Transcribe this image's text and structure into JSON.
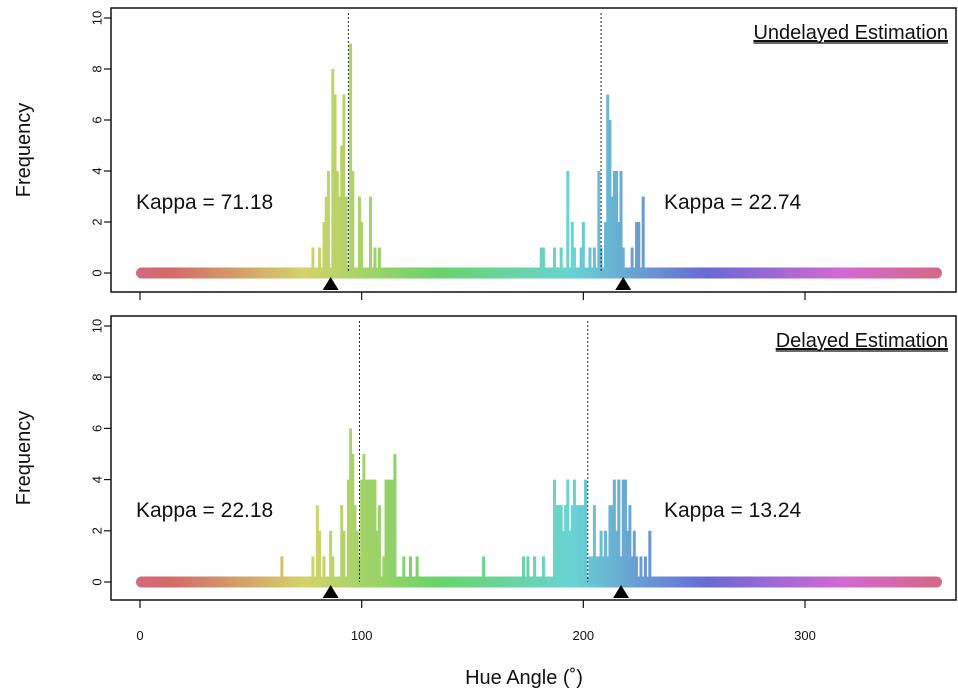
{
  "chart_data": {
    "type": "bar",
    "xlabel": "Hue Angle (˚)",
    "ylabel": "Frequency",
    "xlim": [
      0,
      360
    ],
    "ylim": [
      0,
      10
    ],
    "x_ticks": [
      "0",
      "100",
      "200",
      "300"
    ],
    "y_ticks": [
      "0",
      "2",
      "4",
      "6",
      "8",
      "10"
    ],
    "hue_wheel": true,
    "panels": [
      {
        "title": "Undelayed Estimation",
        "kappa_left": "Kappa = 71.18",
        "kappa_right": "Kappa = 22.74",
        "mean_lines": [
          94,
          208
        ],
        "targets": [
          86,
          218
        ],
        "bars": [
          [
            78,
            1
          ],
          [
            81,
            1
          ],
          [
            83,
            2
          ],
          [
            84,
            3
          ],
          [
            85,
            4
          ],
          [
            87,
            8
          ],
          [
            88,
            7
          ],
          [
            89,
            4
          ],
          [
            90,
            3
          ],
          [
            91,
            5
          ],
          [
            92,
            7
          ],
          [
            93,
            3
          ],
          [
            95,
            9
          ],
          [
            96,
            4
          ],
          [
            99,
            3
          ],
          [
            100,
            2
          ],
          [
            104,
            3
          ],
          [
            106,
            1
          ],
          [
            108,
            1
          ],
          [
            181,
            1
          ],
          [
            182,
            1
          ],
          [
            187,
            1
          ],
          [
            190,
            1
          ],
          [
            193,
            4
          ],
          [
            195,
            2
          ],
          [
            196,
            1
          ],
          [
            199,
            1
          ],
          [
            200,
            2
          ],
          [
            203,
            1
          ],
          [
            205,
            1
          ],
          [
            207,
            4
          ],
          [
            208,
            1
          ],
          [
            210,
            2
          ],
          [
            211,
            7
          ],
          [
            212,
            6
          ],
          [
            213,
            3
          ],
          [
            214,
            4
          ],
          [
            215,
            4
          ],
          [
            216,
            2
          ],
          [
            217,
            4
          ],
          [
            218,
            1
          ],
          [
            222,
            1
          ],
          [
            224,
            2
          ],
          [
            225,
            2
          ],
          [
            227,
            3
          ]
        ]
      },
      {
        "title": "Delayed Estimation",
        "kappa_left": "Kappa = 22.18",
        "kappa_right": "Kappa = 13.24",
        "mean_lines": [
          99,
          202
        ],
        "targets": [
          86,
          217
        ],
        "bars": [
          [
            64,
            1
          ],
          [
            78,
            1
          ],
          [
            80,
            3
          ],
          [
            81,
            2
          ],
          [
            83,
            1
          ],
          [
            86,
            2
          ],
          [
            87,
            1
          ],
          [
            91,
            3
          ],
          [
            92,
            2
          ],
          [
            94,
            4
          ],
          [
            95,
            6
          ],
          [
            96,
            5
          ],
          [
            97,
            3
          ],
          [
            98,
            2
          ],
          [
            99,
            1
          ],
          [
            100,
            4
          ],
          [
            101,
            5
          ],
          [
            102,
            4
          ],
          [
            103,
            4
          ],
          [
            104,
            4
          ],
          [
            105,
            4
          ],
          [
            106,
            4
          ],
          [
            107,
            2
          ],
          [
            108,
            3
          ],
          [
            110,
            1
          ],
          [
            111,
            4
          ],
          [
            112,
            4
          ],
          [
            113,
            4
          ],
          [
            114,
            4
          ],
          [
            115,
            5
          ],
          [
            119,
            1
          ],
          [
            122,
            1
          ],
          [
            125,
            1
          ],
          [
            155,
            1
          ],
          [
            173,
            1
          ],
          [
            175,
            1
          ],
          [
            178,
            1
          ],
          [
            182,
            1
          ],
          [
            187,
            4
          ],
          [
            188,
            3
          ],
          [
            189,
            3
          ],
          [
            190,
            3
          ],
          [
            191,
            2
          ],
          [
            192,
            3
          ],
          [
            193,
            4
          ],
          [
            194,
            2
          ],
          [
            195,
            3
          ],
          [
            196,
            4
          ],
          [
            197,
            3
          ],
          [
            198,
            3
          ],
          [
            199,
            3
          ],
          [
            200,
            3
          ],
          [
            201,
            4
          ],
          [
            203,
            1
          ],
          [
            204,
            1
          ],
          [
            205,
            3
          ],
          [
            206,
            1
          ],
          [
            207,
            1
          ],
          [
            208,
            2
          ],
          [
            209,
            1
          ],
          [
            210,
            2
          ],
          [
            211,
            1
          ],
          [
            212,
            3
          ],
          [
            213,
            3
          ],
          [
            214,
            4
          ],
          [
            215,
            2
          ],
          [
            216,
            4
          ],
          [
            217,
            1
          ],
          [
            218,
            4
          ],
          [
            219,
            4
          ],
          [
            220,
            2
          ],
          [
            221,
            3
          ],
          [
            222,
            1
          ],
          [
            223,
            2
          ],
          [
            224,
            1
          ],
          [
            226,
            1
          ],
          [
            228,
            1
          ],
          [
            230,
            2
          ]
        ]
      }
    ]
  }
}
